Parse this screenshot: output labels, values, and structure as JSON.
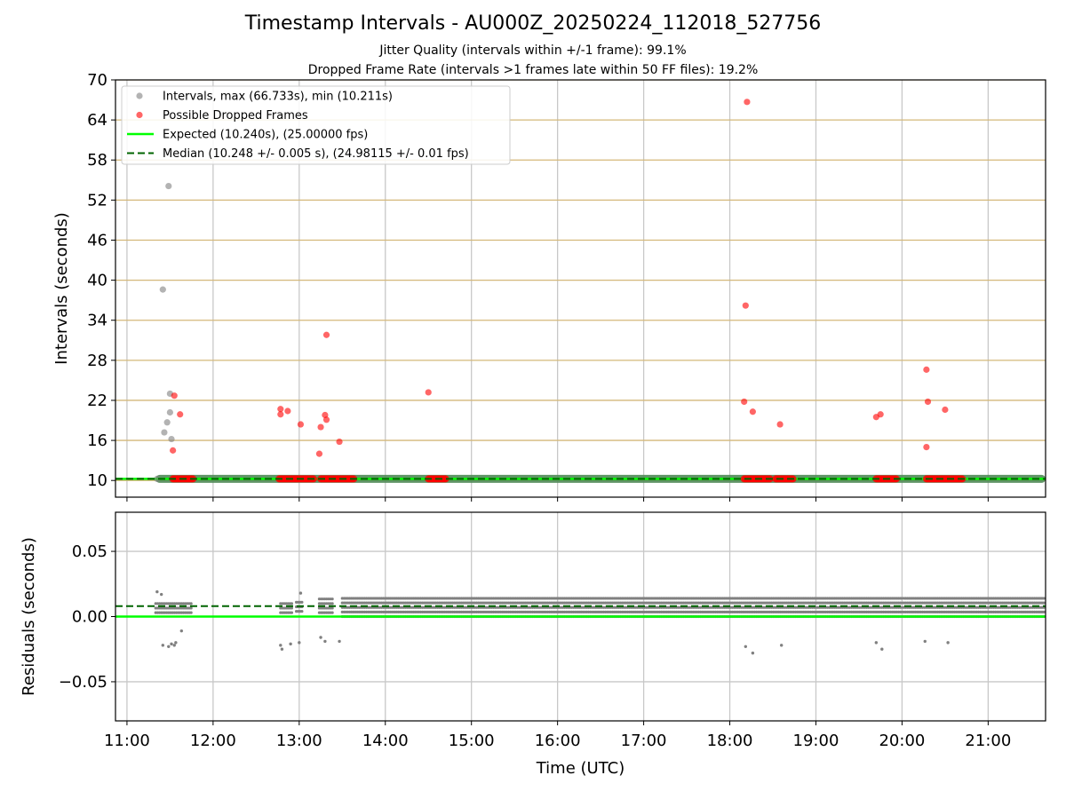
{
  "chart_data": [
    {
      "type": "scatter",
      "title": "Timestamp Intervals - AU000Z_20250224_112018_527756",
      "subtitle_lines": [
        "Jitter Quality (intervals within +/-1 frame): 99.1%",
        "Dropped Frame Rate (intervals >1 frames late within 50 FF files): 19.2%"
      ],
      "ylabel": "Intervals (seconds)",
      "xlim": [
        "10:52",
        "21:40"
      ],
      "ylim": [
        7.5,
        70
      ],
      "yticks": [
        10,
        16,
        22,
        28,
        34,
        40,
        46,
        52,
        58,
        64,
        70
      ],
      "ytick_labels": [
        "10",
        "16",
        "22",
        "28",
        "34",
        "40",
        "46",
        "52",
        "58",
        "64",
        "70"
      ],
      "grid": "vertical gray + horizontal tan",
      "legend_position": "upper-left",
      "legend": [
        "Intervals, max (66.733s), min (10.211s)",
        "Possible Dropped Frames",
        "Expected (10.240s), (25.00000 fps)",
        "Median (10.248 +/- 0.005 s), (24.98115 +/- 0.01 fps)"
      ],
      "series": [
        {
          "name": "Intervals, max (66.733s), min (10.211s)",
          "color": "#808080",
          "points": [
            [
              "11:21",
              10.24
            ],
            [
              "11:25",
              38.6
            ],
            [
              "11:26",
              17.2
            ],
            [
              "11:28",
              18.7
            ],
            [
              "11:29",
              54.1
            ],
            [
              "11:30",
              20.2
            ],
            [
              "11:30",
              23.0
            ],
            [
              "11:31",
              16.2
            ]
          ],
          "baseline_band": {
            "from": "11:20",
            "to": "21:40",
            "value": 10.24
          }
        },
        {
          "name": "Possible Dropped Frames",
          "color": "#ff0000",
          "points": [
            [
              "11:32",
              14.5
            ],
            [
              "11:33",
              22.7
            ],
            [
              "11:37",
              19.9
            ],
            [
              "12:47",
              19.9
            ],
            [
              "12:47",
              20.7
            ],
            [
              "12:52",
              20.4
            ],
            [
              "13:01",
              18.4
            ],
            [
              "13:14",
              14.0
            ],
            [
              "13:15",
              18.0
            ],
            [
              "13:18",
              19.8
            ],
            [
              "13:19",
              19.1
            ],
            [
              "13:19",
              31.8
            ],
            [
              "13:28",
              15.8
            ],
            [
              "14:30",
              23.2
            ],
            [
              "18:10",
              21.8
            ],
            [
              "18:11",
              36.2
            ],
            [
              "18:12",
              66.7
            ],
            [
              "18:16",
              20.3
            ],
            [
              "18:35",
              18.4
            ],
            [
              "19:42",
              19.5
            ],
            [
              "19:45",
              19.9
            ],
            [
              "20:17",
              15.0
            ],
            [
              "20:17",
              26.6
            ],
            [
              "20:18",
              21.8
            ],
            [
              "20:30",
              20.6
            ]
          ],
          "clusters_at_10": [
            [
              "11:32",
              "11:46"
            ],
            [
              "12:46",
              "13:10"
            ],
            [
              "13:15",
              "13:38"
            ],
            [
              "14:30",
              "14:42"
            ],
            [
              "18:10",
              "18:28"
            ],
            [
              "18:32",
              "18:44"
            ],
            [
              "19:42",
              "19:56"
            ],
            [
              "20:17",
              "20:30"
            ],
            [
              "20:31",
              "20:42"
            ]
          ]
        },
        {
          "name": "Expected (10.240s), (25.00000 fps)",
          "color": "#00ff00",
          "value": 10.24
        },
        {
          "name": "Median (10.248 +/- 0.005 s), (24.98115 +/- 0.01 fps)",
          "color": "#006400",
          "value": 10.248
        }
      ]
    },
    {
      "type": "scatter",
      "xlabel": "Time (UTC)",
      "ylabel": "Residuals (seconds)",
      "xlim": [
        "10:52",
        "21:40"
      ],
      "ylim": [
        -0.08,
        0.08
      ],
      "yticks": [
        -0.05,
        0.0,
        0.05
      ],
      "ytick_labels": [
        "−0.05",
        "0.00",
        "0.05"
      ],
      "xtick_labels": [
        "11:00",
        "12:00",
        "13:00",
        "14:00",
        "15:00",
        "16:00",
        "17:00",
        "18:00",
        "19:00",
        "20:00",
        "21:00"
      ],
      "series": [
        {
          "color": "#808080",
          "dense_band": [
            {
              "from": "11:20",
              "to": "11:45",
              "min": 0.003,
              "max": 0.013
            },
            {
              "from": "12:47",
              "to": "12:55",
              "min": 0.003,
              "max": 0.012
            },
            {
              "from": "12:58",
              "to": "13:03",
              "min": 0.004,
              "max": 0.014
            },
            {
              "from": "13:14",
              "to": "13:24",
              "min": 0.003,
              "max": 0.014
            },
            {
              "from": "13:30",
              "to": "21:40",
              "min": 0.0,
              "max": 0.016
            }
          ],
          "outliers": [
            [
              "11:21",
              0.019
            ],
            [
              "11:24",
              0.017
            ],
            [
              "11:25",
              -0.022
            ],
            [
              "11:29",
              -0.023
            ],
            [
              "11:31",
              -0.021
            ],
            [
              "11:33",
              -0.022
            ],
            [
              "11:34",
              -0.02
            ],
            [
              "11:38",
              -0.011
            ],
            [
              "12:47",
              -0.022
            ],
            [
              "12:48",
              -0.025
            ],
            [
              "12:54",
              -0.021
            ],
            [
              "13:00",
              -0.02
            ],
            [
              "13:15",
              -0.016
            ],
            [
              "13:18",
              -0.019
            ],
            [
              "13:28",
              -0.019
            ],
            [
              "13:01",
              0.018
            ],
            [
              "18:11",
              -0.023
            ],
            [
              "18:16",
              -0.028
            ],
            [
              "18:36",
              -0.022
            ],
            [
              "19:42",
              -0.02
            ],
            [
              "19:46",
              -0.025
            ],
            [
              "20:16",
              -0.019
            ],
            [
              "20:32",
              -0.02
            ]
          ]
        },
        {
          "name": "Expected",
          "color": "#00ff00",
          "value": 0.0
        },
        {
          "name": "Median",
          "color": "#006400",
          "value": 0.008
        }
      ]
    }
  ]
}
